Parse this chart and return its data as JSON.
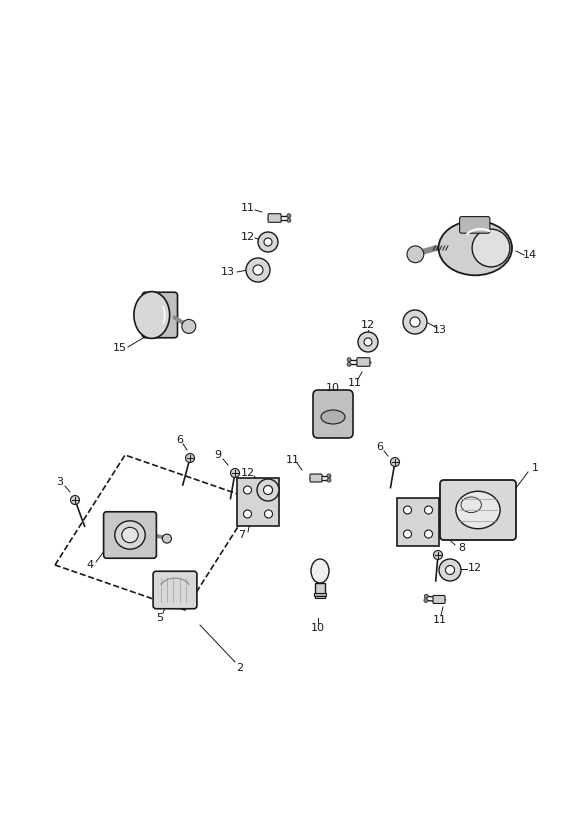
{
  "bg_color": "#ffffff",
  "fig_width": 5.83,
  "fig_height": 8.24,
  "dpi": 100,
  "line_color": "#1a1a1a",
  "fill_light": "#e8e8e8",
  "fill_mid": "#cccccc",
  "fill_dark": "#aaaaaa"
}
